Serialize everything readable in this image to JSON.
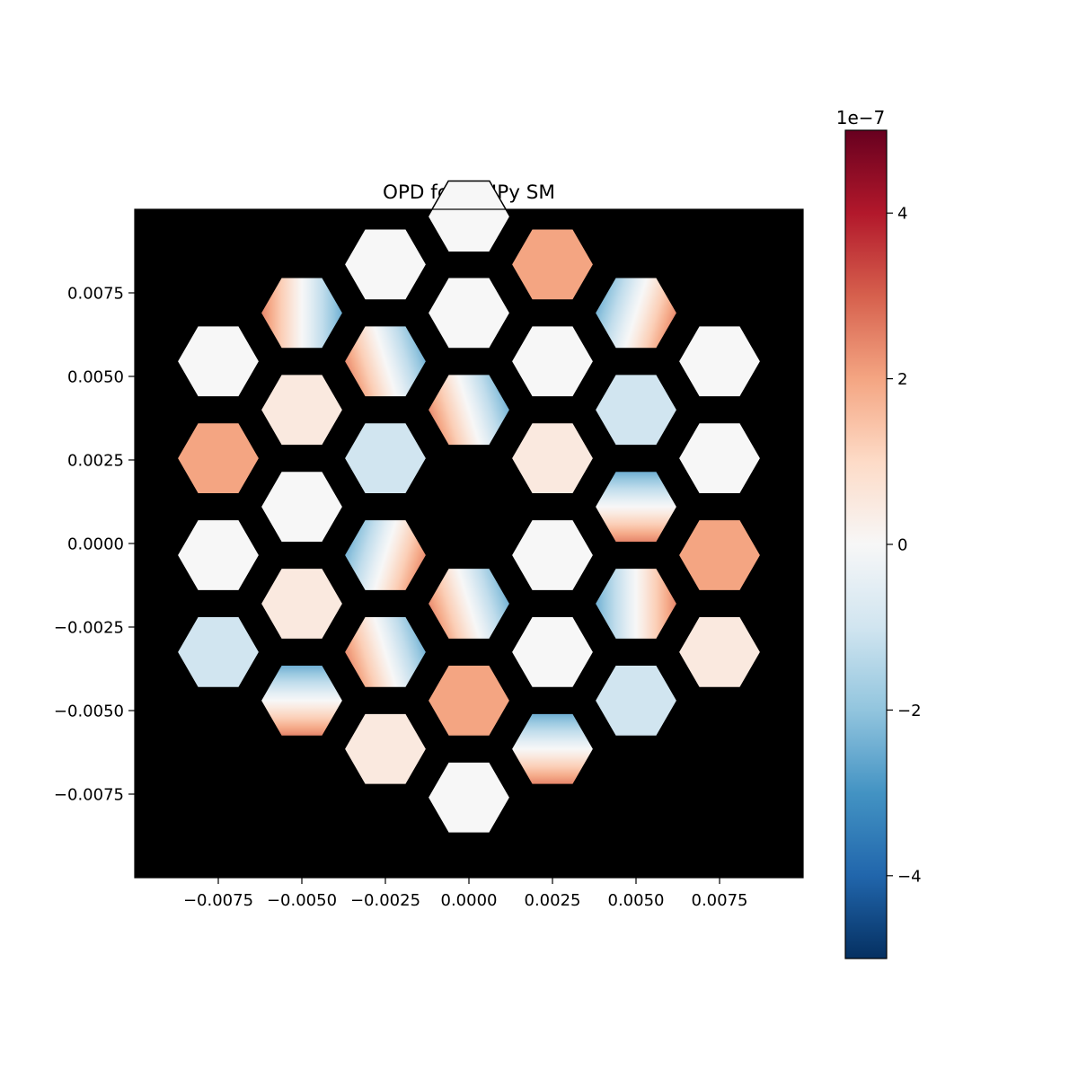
{
  "chart_data": {
    "type": "heatmap",
    "title": "OPD for HCIPy SM",
    "xlabel": "",
    "ylabel": "",
    "xlim": [
      -0.01,
      0.01
    ],
    "ylim": [
      -0.01,
      0.01
    ],
    "x_ticks": [
      -0.0075,
      -0.005,
      -0.0025,
      0.0,
      0.0025,
      0.005,
      0.0075
    ],
    "x_tick_labels": [
      "−0.0075",
      "−0.0050",
      "−0.0025",
      "0.0000",
      "0.0025",
      "0.0050",
      "0.0075"
    ],
    "y_ticks": [
      0.0075,
      0.005,
      0.0025,
      0.0,
      -0.0025,
      -0.005,
      -0.0075
    ],
    "y_tick_labels": [
      "0.0075",
      "0.0050",
      "0.0025",
      "0.0000",
      "−0.0025",
      "−0.0050",
      "−0.0075"
    ],
    "colormap": "RdBu_r",
    "colorbar": {
      "range": [
        -5e-07,
        5e-07
      ],
      "ticks": [
        4,
        2,
        0,
        -2,
        -4
      ],
      "tick_labels": [
        "4",
        "2",
        "0",
        "−2",
        "−4"
      ],
      "offset_label": "1e−7"
    },
    "background_color": "#000000",
    "aperture": "hexagonal segmented, 36 segments, central obscuration",
    "segment_size": 0.00246,
    "segments": [
      {
        "x": 0.0,
        "y": 0.00978,
        "mode": "piston",
        "piston": 0.0
      },
      {
        "x": -0.0025,
        "y": 0.00835,
        "mode": "piston",
        "piston": 0.0
      },
      {
        "x": 0.0025,
        "y": 0.00835,
        "mode": "piston",
        "piston": 2e-07
      },
      {
        "x": -0.005,
        "y": 0.0069,
        "mode": "tilt",
        "angle": 0,
        "amplitude": 2.5e-07
      },
      {
        "x": 0.0,
        "y": 0.0069,
        "mode": "piston",
        "piston": 0.0
      },
      {
        "x": 0.005,
        "y": 0.0069,
        "mode": "tilt",
        "angle": 165,
        "amplitude": 2.5e-07
      },
      {
        "x": -0.0075,
        "y": 0.00545,
        "mode": "piston",
        "piston": 0.0
      },
      {
        "x": -0.0025,
        "y": 0.00545,
        "mode": "tilt",
        "angle": 15,
        "amplitude": 2.5e-07
      },
      {
        "x": 0.0025,
        "y": 0.00545,
        "mode": "piston",
        "piston": 0.0
      },
      {
        "x": 0.0075,
        "y": 0.00545,
        "mode": "piston",
        "piston": 0.0
      },
      {
        "x": -0.005,
        "y": 0.004,
        "mode": "piston",
        "piston": 5e-08
      },
      {
        "x": 0.0,
        "y": 0.004,
        "mode": "tilt",
        "angle": 15,
        "amplitude": 2.5e-07
      },
      {
        "x": 0.005,
        "y": 0.004,
        "mode": "piston",
        "piston": -1e-07
      },
      {
        "x": -0.0075,
        "y": 0.00255,
        "mode": "piston",
        "piston": 2e-07
      },
      {
        "x": -0.0025,
        "y": 0.00255,
        "mode": "piston",
        "piston": -1e-07
      },
      {
        "x": 0.0025,
        "y": 0.00255,
        "mode": "piston",
        "piston": 5e-08
      },
      {
        "x": 0.0075,
        "y": 0.00255,
        "mode": "piston",
        "piston": 0.0
      },
      {
        "x": -0.005,
        "y": 0.0011,
        "mode": "piston",
        "piston": 0.0
      },
      {
        "x": 0.005,
        "y": 0.0011,
        "mode": "tilt",
        "angle": 90,
        "amplitude": 2.5e-07
      },
      {
        "x": -0.0075,
        "y": -0.00035,
        "mode": "piston",
        "piston": 0.0
      },
      {
        "x": -0.0025,
        "y": -0.00035,
        "mode": "tilt",
        "angle": 165,
        "amplitude": 2.5e-07
      },
      {
        "x": 0.0025,
        "y": -0.00035,
        "mode": "piston",
        "piston": 0.0
      },
      {
        "x": 0.0075,
        "y": -0.00035,
        "mode": "piston",
        "piston": 2e-07
      },
      {
        "x": -0.005,
        "y": -0.0018,
        "mode": "piston",
        "piston": 5e-08
      },
      {
        "x": 0.0,
        "y": -0.0018,
        "mode": "tilt",
        "angle": 15,
        "amplitude": 2.5e-07
      },
      {
        "x": 0.005,
        "y": -0.0018,
        "mode": "tilt",
        "angle": 180,
        "amplitude": 2.5e-07
      },
      {
        "x": -0.0075,
        "y": -0.00325,
        "mode": "piston",
        "piston": -1e-07
      },
      {
        "x": -0.0025,
        "y": -0.00325,
        "mode": "tilt",
        "angle": 15,
        "amplitude": 2.5e-07
      },
      {
        "x": 0.0025,
        "y": -0.00325,
        "mode": "piston",
        "piston": 0.0
      },
      {
        "x": 0.0075,
        "y": -0.00325,
        "mode": "piston",
        "piston": 5e-08
      },
      {
        "x": -0.005,
        "y": -0.0047,
        "mode": "tilt",
        "angle": 90,
        "amplitude": 2.5e-07
      },
      {
        "x": 0.0,
        "y": -0.0047,
        "mode": "piston",
        "piston": 2e-07
      },
      {
        "x": 0.005,
        "y": -0.0047,
        "mode": "piston",
        "piston": -1e-07
      },
      {
        "x": -0.0025,
        "y": -0.00615,
        "mode": "piston",
        "piston": 5e-08
      },
      {
        "x": 0.0025,
        "y": -0.00615,
        "mode": "tilt",
        "angle": 90,
        "amplitude": 2.5e-07
      },
      {
        "x": 0.0,
        "y": -0.0076,
        "mode": "piston",
        "piston": 0.0
      }
    ]
  }
}
